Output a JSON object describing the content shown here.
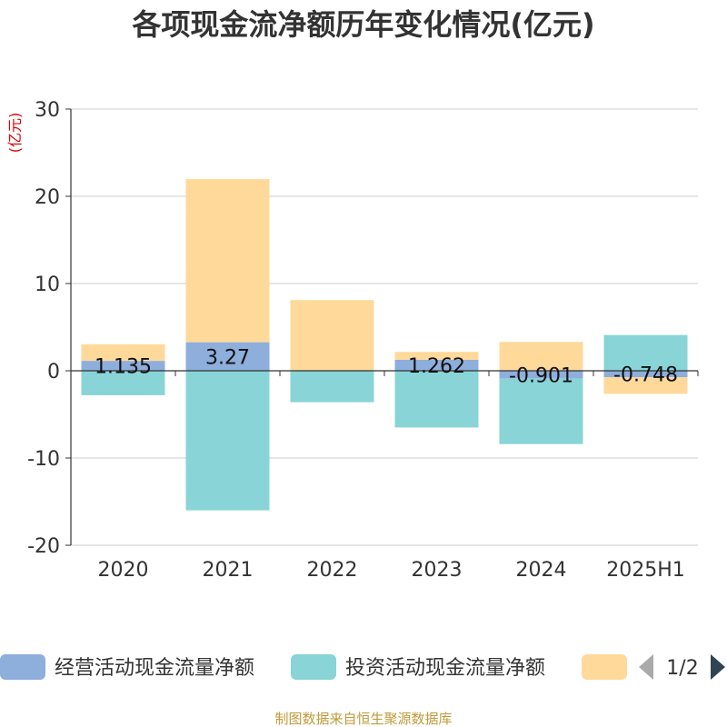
{
  "chart_data": {
    "type": "bar",
    "stacked": true,
    "title": "各项现金流净额历年变化情况(亿元)",
    "unit_label": "(亿元)",
    "categories": [
      "2020",
      "2021",
      "2022",
      "2023",
      "2024",
      "2025H1"
    ],
    "ylim": [
      -20,
      30
    ],
    "yticks": [
      30,
      20,
      10,
      0,
      -10,
      -20
    ],
    "grid": true,
    "series": [
      {
        "name": "经营活动现金流量净额",
        "color": "#8eaedc",
        "values": [
          1.135,
          3.27,
          0.0,
          1.262,
          -0.901,
          -0.748
        ],
        "data_labels": [
          "1.135",
          "3.27",
          "",
          "1.262",
          "-0.901",
          "-0.748"
        ]
      },
      {
        "name": "投资活动现金流量净额",
        "color": "#88d4d7",
        "values": [
          -2.8,
          -16.0,
          -3.6,
          -6.5,
          -7.5,
          4.1
        ]
      },
      {
        "name": "",
        "color": "#fed99a",
        "values": [
          1.9,
          18.7,
          8.1,
          0.9,
          3.3,
          -1.9
        ]
      }
    ],
    "legend_position": "bottom"
  },
  "legend": {
    "page_indicator": "1/2",
    "prev_icon": "triangle-left-icon",
    "next_icon": "triangle-right-icon"
  },
  "source_text": "制图数据来自恒生聚源数据库",
  "colors": {
    "axis": "#333333",
    "grid": "#cccccc",
    "unit": "#e00000",
    "source": "#c09a3a"
  }
}
